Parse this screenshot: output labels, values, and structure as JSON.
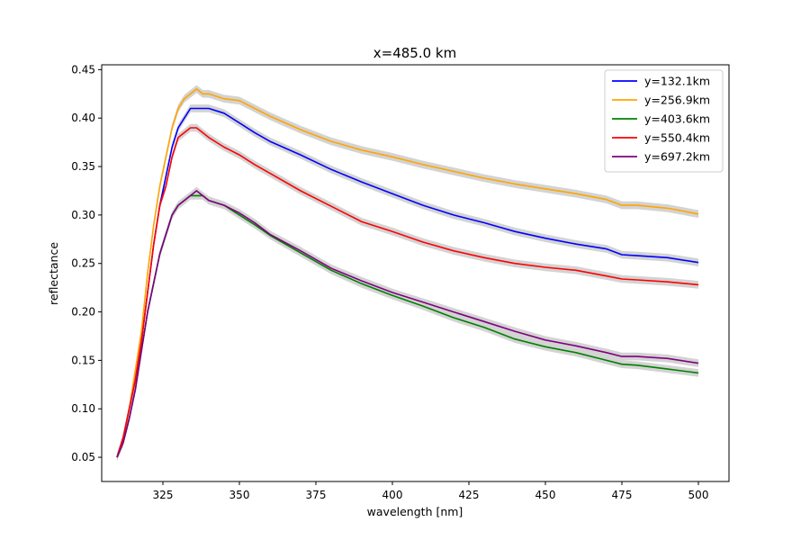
{
  "chart_data": {
    "type": "line",
    "title": "x=485.0 km",
    "xlabel": "wavelength [nm]",
    "ylabel": "reflectance",
    "xlim": [
      305,
      510
    ],
    "ylim": [
      0.025,
      0.455
    ],
    "xticks": [
      325,
      350,
      375,
      400,
      425,
      450,
      475,
      500
    ],
    "xtick_labels": [
      "325",
      "350",
      "375",
      "400",
      "425",
      "450",
      "475",
      "500"
    ],
    "yticks": [
      0.05,
      0.1,
      0.15,
      0.2,
      0.25,
      0.3,
      0.35,
      0.4,
      0.45
    ],
    "ytick_labels": [
      "0.05",
      "0.10",
      "0.15",
      "0.20",
      "0.25",
      "0.30",
      "0.35",
      "0.40",
      "0.45"
    ],
    "grid": false,
    "legend_position": "top-right",
    "band_color": "#d3d3d3",
    "series": [
      {
        "name": "y=132.1km",
        "color": "#0000ff",
        "x": [
          310,
          312,
          314,
          316,
          318,
          320,
          322,
          324,
          326,
          328,
          330,
          332,
          334,
          336,
          338,
          340,
          345,
          350,
          355,
          360,
          370,
          380,
          390,
          400,
          410,
          420,
          430,
          440,
          450,
          460,
          470,
          475,
          480,
          490,
          500
        ],
        "y": [
          0.05,
          0.07,
          0.1,
          0.13,
          0.17,
          0.22,
          0.27,
          0.31,
          0.34,
          0.37,
          0.39,
          0.4,
          0.41,
          0.41,
          0.41,
          0.41,
          0.405,
          0.395,
          0.385,
          0.376,
          0.362,
          0.347,
          0.334,
          0.322,
          0.31,
          0.3,
          0.292,
          0.283,
          0.276,
          0.27,
          0.265,
          0.259,
          0.258,
          0.256,
          0.251
        ]
      },
      {
        "name": "y=256.9km",
        "color": "#ffa500",
        "x": [
          310,
          312,
          314,
          316,
          318,
          320,
          322,
          324,
          326,
          328,
          330,
          332,
          334,
          336,
          338,
          340,
          345,
          350,
          355,
          360,
          370,
          380,
          390,
          400,
          410,
          420,
          430,
          440,
          450,
          460,
          470,
          475,
          480,
          490,
          500
        ],
        "y": [
          0.05,
          0.07,
          0.1,
          0.14,
          0.18,
          0.24,
          0.29,
          0.33,
          0.36,
          0.39,
          0.41,
          0.42,
          0.425,
          0.43,
          0.425,
          0.425,
          0.42,
          0.418,
          0.41,
          0.402,
          0.388,
          0.376,
          0.367,
          0.36,
          0.352,
          0.345,
          0.338,
          0.332,
          0.327,
          0.322,
          0.316,
          0.31,
          0.31,
          0.307,
          0.301
        ]
      },
      {
        "name": "y=403.6km",
        "color": "#008000",
        "x": [
          310,
          312,
          314,
          316,
          318,
          320,
          322,
          324,
          326,
          328,
          330,
          332,
          334,
          336,
          338,
          340,
          345,
          350,
          355,
          360,
          370,
          380,
          390,
          400,
          410,
          420,
          430,
          440,
          450,
          460,
          470,
          475,
          480,
          490,
          500
        ],
        "y": [
          0.05,
          0.065,
          0.09,
          0.12,
          0.16,
          0.2,
          0.23,
          0.26,
          0.28,
          0.3,
          0.31,
          0.315,
          0.32,
          0.32,
          0.32,
          0.315,
          0.31,
          0.3,
          0.29,
          0.279,
          0.261,
          0.243,
          0.229,
          0.217,
          0.206,
          0.194,
          0.184,
          0.172,
          0.164,
          0.158,
          0.15,
          0.146,
          0.145,
          0.141,
          0.137
        ]
      },
      {
        "name": "y=550.4km",
        "color": "#ff0000",
        "x": [
          310,
          312,
          314,
          316,
          318,
          320,
          322,
          324,
          326,
          328,
          330,
          332,
          334,
          336,
          338,
          340,
          345,
          350,
          355,
          360,
          370,
          380,
          390,
          400,
          410,
          420,
          430,
          440,
          450,
          460,
          470,
          475,
          480,
          490,
          500
        ],
        "y": [
          0.05,
          0.07,
          0.1,
          0.13,
          0.17,
          0.22,
          0.27,
          0.31,
          0.33,
          0.36,
          0.38,
          0.385,
          0.39,
          0.39,
          0.385,
          0.38,
          0.37,
          0.362,
          0.352,
          0.343,
          0.325,
          0.309,
          0.293,
          0.283,
          0.272,
          0.263,
          0.256,
          0.25,
          0.246,
          0.243,
          0.237,
          0.234,
          0.233,
          0.231,
          0.228
        ]
      },
      {
        "name": "y=697.2km",
        "color": "#800080",
        "x": [
          310,
          312,
          314,
          316,
          318,
          320,
          322,
          324,
          326,
          328,
          330,
          332,
          334,
          336,
          338,
          340,
          345,
          350,
          355,
          360,
          370,
          380,
          390,
          400,
          410,
          420,
          430,
          440,
          450,
          460,
          470,
          475,
          480,
          490,
          500
        ],
        "y": [
          0.05,
          0.065,
          0.09,
          0.12,
          0.16,
          0.2,
          0.23,
          0.26,
          0.28,
          0.3,
          0.31,
          0.315,
          0.32,
          0.325,
          0.32,
          0.315,
          0.31,
          0.302,
          0.292,
          0.28,
          0.263,
          0.245,
          0.232,
          0.22,
          0.21,
          0.2,
          0.19,
          0.18,
          0.171,
          0.165,
          0.158,
          0.154,
          0.154,
          0.152,
          0.147
        ]
      }
    ]
  }
}
